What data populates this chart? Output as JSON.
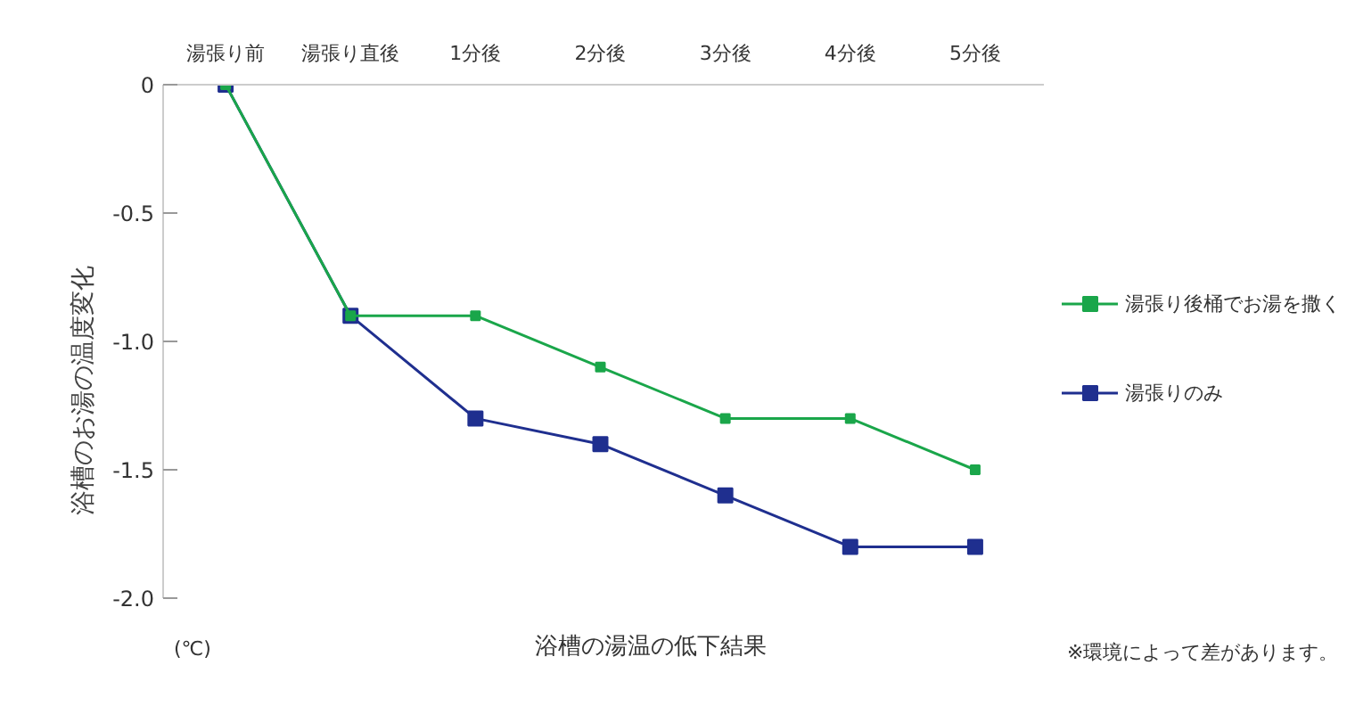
{
  "chart_data": {
    "type": "line",
    "categories": [
      "湯張り前",
      "湯張り直後",
      "1分後",
      "2分後",
      "3分後",
      "4分後",
      "5分後"
    ],
    "series": [
      {
        "name": "湯張り後桶でお湯を撒く",
        "color": "#1aa64a",
        "values": [
          0,
          -0.9,
          -0.9,
          -1.1,
          -1.3,
          -1.3,
          -1.5
        ]
      },
      {
        "name": "湯張りのみ",
        "color": "#1f2f8f",
        "values": [
          0,
          -0.9,
          -1.3,
          -1.4,
          -1.6,
          -1.8,
          -1.8
        ]
      }
    ],
    "ylabel": "浴槽のお湯の温度変化",
    "xlabel": "浴槽の湯温の低下結果",
    "annotations": [
      "(℃)",
      "※環境によって差があります。"
    ],
    "ylim": [
      -2.0,
      0
    ],
    "yticks": [
      0,
      -0.5,
      {
        "value": -1.0,
        "label": "-1.0"
      },
      -1.5,
      {
        "value": -2.0,
        "label": "-2.0"
      }
    ],
    "grid": false,
    "legend": "right",
    "marker": "square",
    "line_style": "solid"
  }
}
